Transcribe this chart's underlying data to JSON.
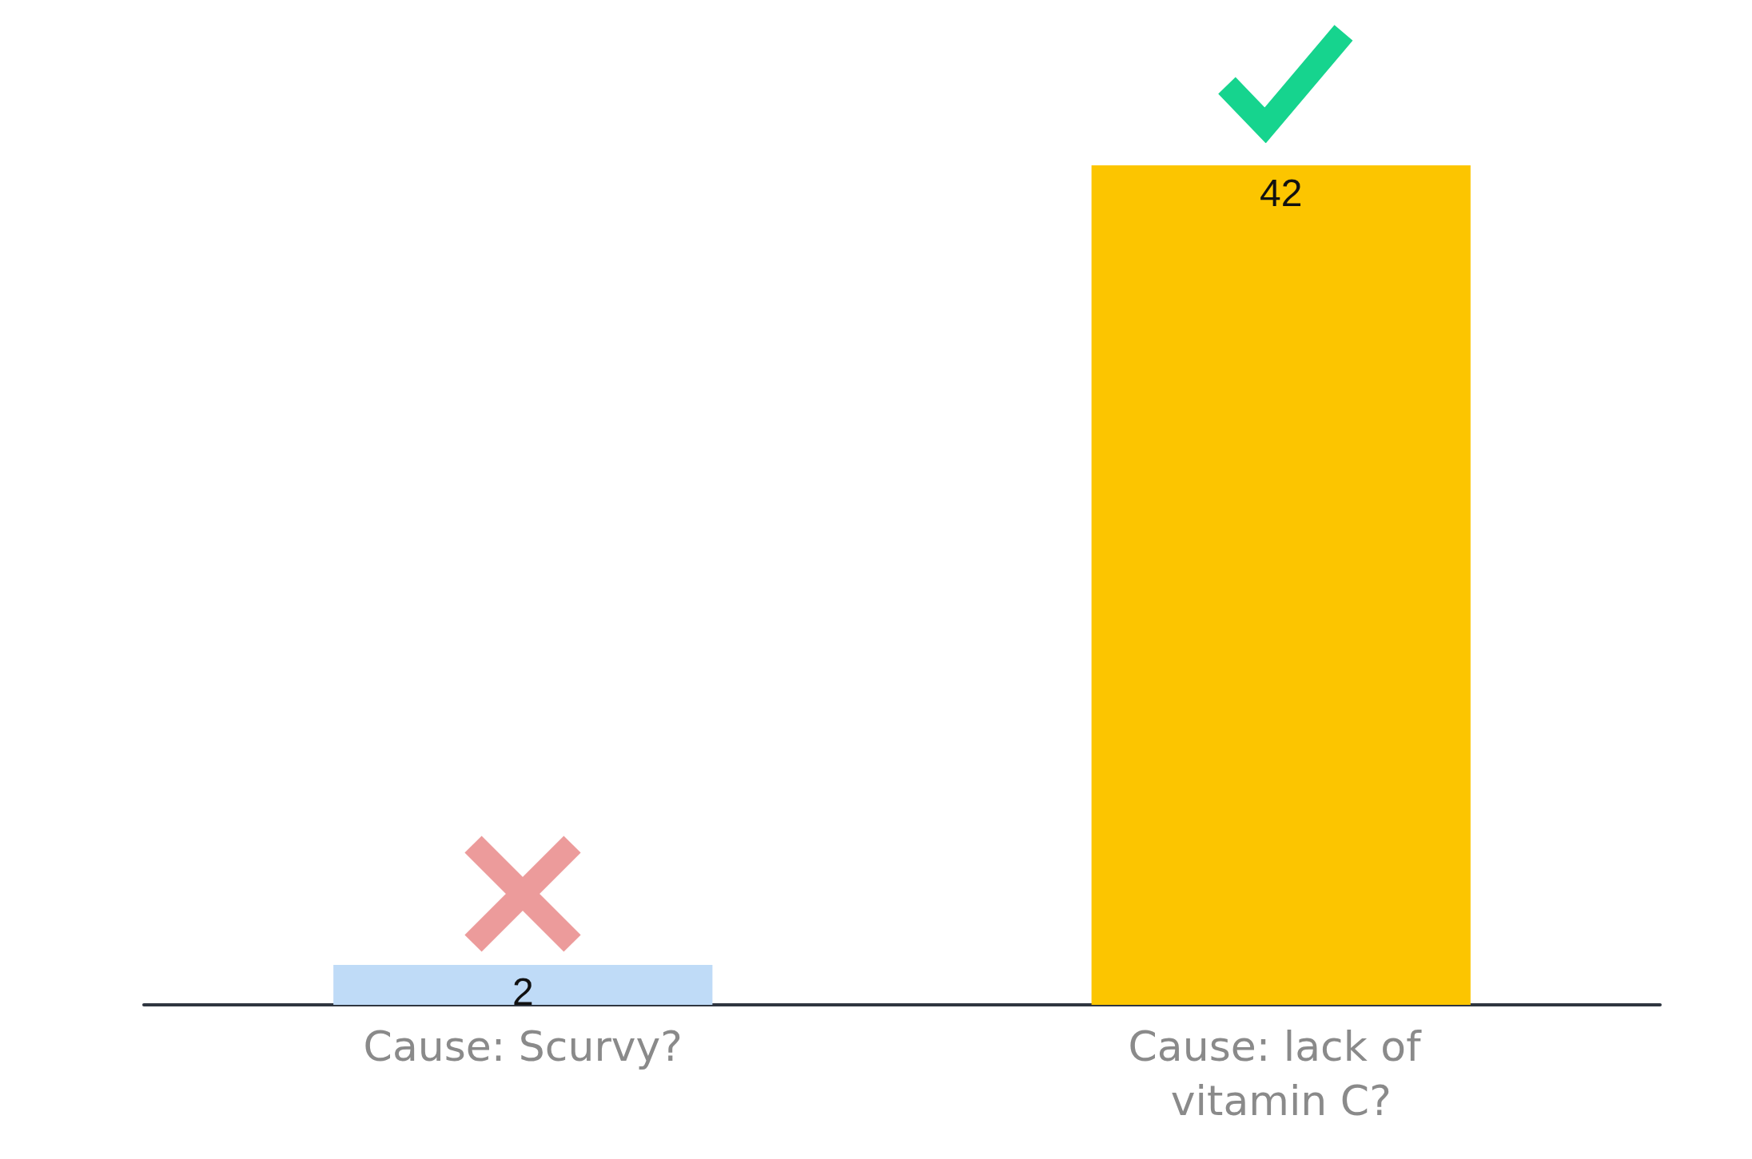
{
  "chart_data": {
    "type": "bar",
    "categories": [
      "Cause: Scurvy?",
      "Cause: lack of vitamin C?"
    ],
    "values": [
      2,
      42
    ],
    "colors": [
      "#bfdbf7",
      "#fcc500"
    ],
    "data_labels": true
  }
}
